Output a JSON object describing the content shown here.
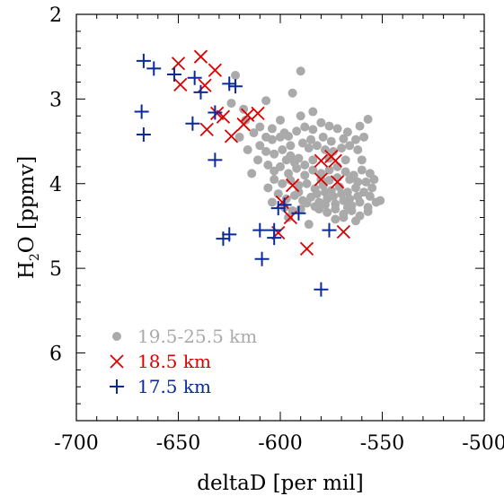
{
  "chart_data": {
    "type": "scatter",
    "title": "",
    "xlabel": "deltaD [per mil]",
    "ylabel_main": "H",
    "ylabel_sub": "2",
    "ylabel_rest": "O [ppmv]",
    "xlim": [
      -700,
      -500
    ],
    "ylim": [
      6.8,
      2.0
    ],
    "y_inverted": true,
    "xticks": [
      -700,
      -650,
      -600,
      -550,
      -500
    ],
    "xtick_labels": [
      "-700",
      "-650",
      "-600",
      "-550",
      "-500"
    ],
    "yticks": [
      2,
      3,
      4,
      5,
      6
    ],
    "ytick_labels": [
      "2",
      "3",
      "4",
      "5",
      "6"
    ],
    "grid": false,
    "legend_placement": "bottom-left",
    "series": [
      {
        "name": "19.5-25.5 km",
        "marker": "circle",
        "color": "#aaaaaa",
        "points": [
          [
            -622,
            2.72
          ],
          [
            -590,
            2.67
          ],
          [
            -594,
            2.93
          ],
          [
            -607,
            3.02
          ],
          [
            -624,
            3.05
          ],
          [
            -618,
            3.12
          ],
          [
            -617,
            3.25
          ],
          [
            -610,
            3.33
          ],
          [
            -613,
            3.4
          ],
          [
            -607,
            3.45
          ],
          [
            -604,
            3.48
          ],
          [
            -600,
            3.45
          ],
          [
            -598,
            3.4
          ],
          [
            -596,
            3.44
          ],
          [
            -592,
            3.38
          ],
          [
            -588,
            3.33
          ],
          [
            -584,
            3.36
          ],
          [
            -580,
            3.28
          ],
          [
            -576,
            3.32
          ],
          [
            -572,
            3.35
          ],
          [
            -567,
            3.39
          ],
          [
            -561,
            3.32
          ],
          [
            -557,
            3.24
          ],
          [
            -584,
            3.15
          ],
          [
            -589,
            3.52
          ],
          [
            -586,
            3.58
          ],
          [
            -582,
            3.55
          ],
          [
            -578,
            3.6
          ],
          [
            -574,
            3.62
          ],
          [
            -570,
            3.58
          ],
          [
            -566,
            3.55
          ],
          [
            -562,
            3.6
          ],
          [
            -610,
            3.55
          ],
          [
            -607,
            3.62
          ],
          [
            -603,
            3.65
          ],
          [
            -599,
            3.6
          ],
          [
            -595,
            3.67
          ],
          [
            -591,
            3.7
          ],
          [
            -606,
            3.78
          ],
          [
            -603,
            3.85
          ],
          [
            -600,
            3.8
          ],
          [
            -596,
            3.88
          ],
          [
            -592,
            3.82
          ],
          [
            -588,
            3.78
          ],
          [
            -584,
            3.84
          ],
          [
            -580,
            3.88
          ],
          [
            -576,
            3.84
          ],
          [
            -572,
            3.8
          ],
          [
            -568,
            3.86
          ],
          [
            -564,
            3.9
          ],
          [
            -560,
            3.84
          ],
          [
            -556,
            3.88
          ],
          [
            -603,
            3.95
          ],
          [
            -599,
            4.0
          ],
          [
            -595,
            3.96
          ],
          [
            -591,
            4.02
          ],
          [
            -587,
            4.0
          ],
          [
            -583,
            4.06
          ],
          [
            -579,
            4.02
          ],
          [
            -575,
            4.08
          ],
          [
            -571,
            4.04
          ],
          [
            -567,
            4.1
          ],
          [
            -563,
            4.05
          ],
          [
            -559,
            4.1
          ],
          [
            -555,
            4.05
          ],
          [
            -601,
            4.12
          ],
          [
            -597,
            4.18
          ],
          [
            -593,
            4.14
          ],
          [
            -589,
            4.2
          ],
          [
            -585,
            4.16
          ],
          [
            -581,
            4.22
          ],
          [
            -577,
            4.18
          ],
          [
            -573,
            4.24
          ],
          [
            -569,
            4.2
          ],
          [
            -565,
            4.26
          ],
          [
            -561,
            4.22
          ],
          [
            -557,
            4.28
          ],
          [
            -553,
            4.22
          ],
          [
            -581,
            4.3
          ],
          [
            -577,
            4.34
          ],
          [
            -573,
            4.3
          ],
          [
            -569,
            4.36
          ],
          [
            -565,
            4.32
          ],
          [
            -561,
            4.38
          ],
          [
            -557,
            4.33
          ],
          [
            -573,
            4.42
          ],
          [
            -569,
            4.4
          ],
          [
            -563,
            4.44
          ],
          [
            -586,
            4.48
          ],
          [
            -598,
            4.28
          ],
          [
            -594,
            4.32
          ],
          [
            -590,
            4.3
          ],
          [
            -614,
            3.88
          ],
          [
            -611,
            3.72
          ],
          [
            -616,
            3.6
          ],
          [
            -620,
            3.45
          ],
          [
            -606,
            4.05
          ],
          [
            -604,
            4.22
          ],
          [
            -584,
            3.72
          ],
          [
            -576,
            3.7
          ],
          [
            -568,
            3.72
          ],
          [
            -560,
            3.72
          ],
          [
            -580,
            3.95
          ],
          [
            -576,
            3.96
          ],
          [
            -572,
            3.93
          ],
          [
            -566,
            3.95
          ],
          [
            -562,
            3.98
          ],
          [
            -556,
            4.15
          ],
          [
            -551,
            4.2
          ],
          [
            -582,
            4.12
          ],
          [
            -578,
            4.1
          ],
          [
            -591,
            4.1
          ],
          [
            -588,
            3.9
          ],
          [
            -593,
            3.75
          ],
          [
            -597,
            3.72
          ],
          [
            -585,
            3.48
          ],
          [
            -579,
            3.45
          ],
          [
            -575,
            3.5
          ],
          [
            -569,
            3.47
          ],
          [
            -563,
            3.48
          ],
          [
            -559,
            3.45
          ],
          [
            -590,
            3.2
          ],
          [
            -600,
            3.25
          ],
          [
            -604,
            3.35
          ],
          [
            -595,
            3.55
          ],
          [
            -558,
            3.98
          ],
          [
            -554,
            3.95
          ],
          [
            -562,
            4.15
          ],
          [
            -566,
            4.18
          ],
          [
            -570,
            4.12
          ],
          [
            -574,
            4.15
          ],
          [
            -578,
            4.25
          ],
          [
            -583,
            4.27
          ],
          [
            -587,
            4.23
          ],
          [
            -596,
            4.4
          ],
          [
            -567,
            4.28
          ]
        ]
      },
      {
        "name": "18.5 km",
        "marker": "x",
        "color": "#dd0000",
        "points": [
          [
            -650,
            2.58
          ],
          [
            -639,
            2.5
          ],
          [
            -632,
            2.66
          ],
          [
            -649,
            2.83
          ],
          [
            -637,
            2.84
          ],
          [
            -631,
            3.17
          ],
          [
            -616,
            3.19
          ],
          [
            -611,
            3.17
          ],
          [
            -628,
            3.21
          ],
          [
            -618,
            3.3
          ],
          [
            -636,
            3.36
          ],
          [
            -624,
            3.44
          ],
          [
            -599,
            4.22
          ],
          [
            -594,
            4.02
          ],
          [
            -595,
            4.4
          ],
          [
            -601,
            4.58
          ],
          [
            -587,
            4.77
          ],
          [
            -580,
            3.73
          ],
          [
            -575,
            3.68
          ],
          [
            -573,
            3.73
          ],
          [
            -580,
            3.95
          ],
          [
            -572,
            3.98
          ],
          [
            -569,
            4.57
          ]
        ]
      },
      {
        "name": "17.5 km",
        "marker": "plus",
        "color": "#0a2a9a",
        "points": [
          [
            -667,
            2.55
          ],
          [
            -662,
            2.64
          ],
          [
            -652,
            2.71
          ],
          [
            -642,
            2.75
          ],
          [
            -639,
            2.92
          ],
          [
            -625,
            2.82
          ],
          [
            -622,
            2.85
          ],
          [
            -668,
            3.15
          ],
          [
            -667,
            3.42
          ],
          [
            -643,
            3.29
          ],
          [
            -632,
            3.16
          ],
          [
            -632,
            3.72
          ],
          [
            -628,
            4.65
          ],
          [
            -625,
            4.6
          ],
          [
            -610,
            4.55
          ],
          [
            -609,
            4.89
          ],
          [
            -603,
            4.55
          ],
          [
            -603,
            4.64
          ],
          [
            -601,
            4.29
          ],
          [
            -598,
            4.25
          ],
          [
            -591,
            4.35
          ],
          [
            -580,
            5.25
          ],
          [
            -576,
            4.55
          ]
        ]
      }
    ]
  }
}
